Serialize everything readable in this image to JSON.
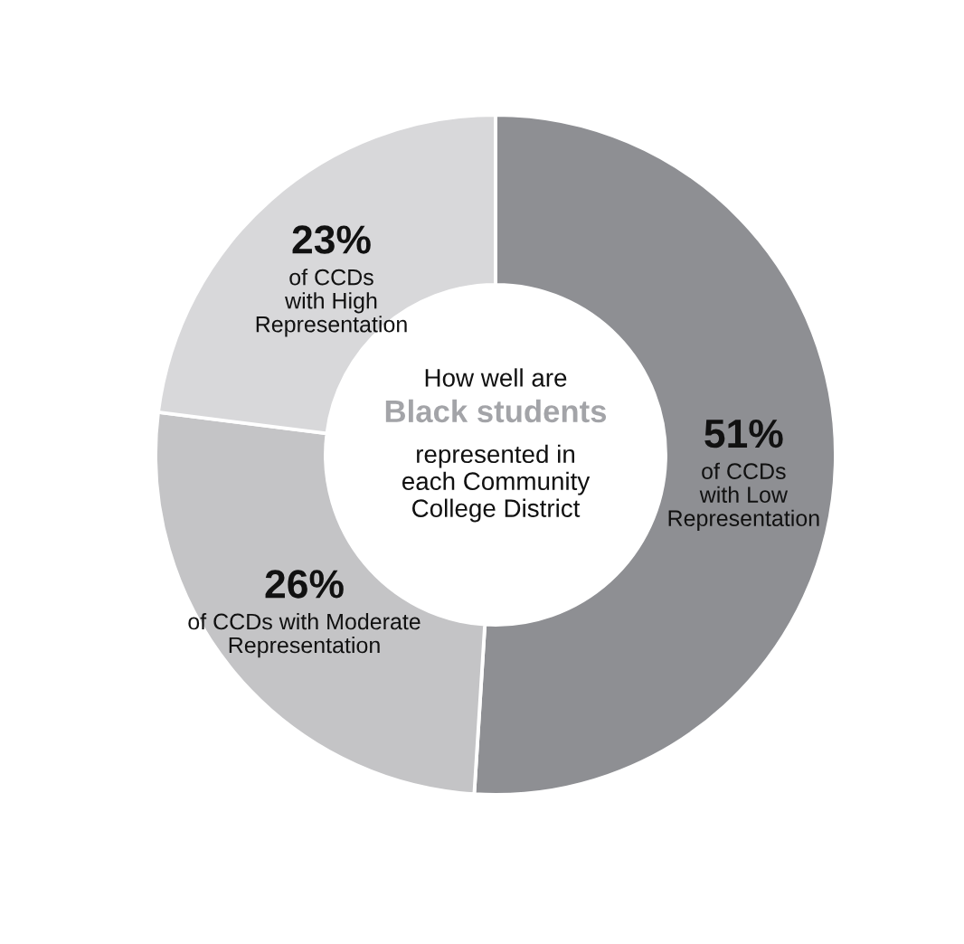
{
  "chart_data": {
    "type": "donut",
    "title": "How well are",
    "subtitle": "Black students",
    "annotations": [
      "represented in\neach Community\nCollege District"
    ],
    "categories": [
      "of CCDs\nwith Low\nRepresentation",
      "of CCDs with Moderate\nRepresentation",
      "of CCDs\nwith High\nRepresentation"
    ],
    "values": [
      51,
      26,
      23
    ],
    "value_labels": [
      "51%",
      "26%",
      "23%"
    ],
    "colors": [
      "#8e8f93",
      "#c4c4c6",
      "#d8d8da"
    ]
  }
}
